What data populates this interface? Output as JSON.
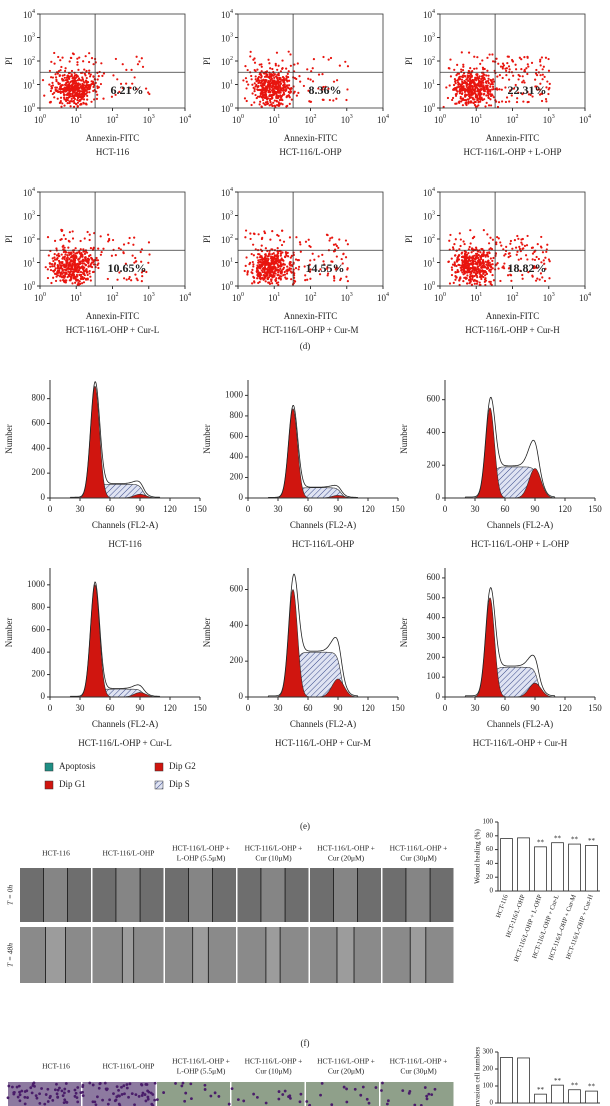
{
  "flow": {
    "axis": {
      "x_label": "Annexin-FITC",
      "y_label": "PI",
      "tick_base": "10",
      "tick_exps": [
        "0",
        "1",
        "2",
        "3",
        "4"
      ]
    },
    "panels": [
      {
        "caption": "HCT-116",
        "percent": "6.21%"
      },
      {
        "caption": "HCT-116/L-OHP",
        "percent": "8.36%"
      },
      {
        "caption": "HCT-116/L-OHP + L-OHP",
        "percent": "22.31%"
      },
      {
        "caption": "HCT-116/L-OHP + Cur-L",
        "percent": "10.65%"
      },
      {
        "caption": "HCT-116/L-OHP + Cur-M",
        "percent": "14.55%"
      },
      {
        "caption": "HCT-116/L-OHP + Cur-H",
        "percent": "18.82%"
      }
    ],
    "label": "(d)"
  },
  "cycle": {
    "x_label": "Channels (FL2-A)",
    "y_label": "Number",
    "xlim": [
      0,
      150
    ],
    "xticks": [
      0,
      30,
      60,
      90,
      120,
      150
    ],
    "panels": [
      {
        "caption": "HCT-116",
        "ylim": [
          0,
          950
        ],
        "yticks": [
          0,
          200,
          400,
          600,
          800
        ],
        "g1_peak": 900,
        "s_level": 110,
        "g2_peak": 30
      },
      {
        "caption": "HCT-116/L-OHP",
        "ylim": [
          0,
          1150
        ],
        "yticks": [
          0,
          200,
          400,
          600,
          800,
          1000
        ],
        "g1_peak": 870,
        "s_level": 100,
        "g2_peak": 25
      },
      {
        "caption": "HCT-116/L-OHP + L-OHP",
        "ylim": [
          0,
          720
        ],
        "yticks": [
          0,
          200,
          400,
          600
        ],
        "g1_peak": 550,
        "s_level": 190,
        "g2_peak": 180
      },
      {
        "caption": "HCT-116/L-OHP + Cur-L",
        "ylim": [
          0,
          1150
        ],
        "yticks": [
          0,
          200,
          400,
          600,
          800,
          1000
        ],
        "g1_peak": 1000,
        "s_level": 70,
        "g2_peak": 40
      },
      {
        "caption": "HCT-116/L-OHP + Cur-M",
        "ylim": [
          0,
          720
        ],
        "yticks": [
          0,
          200,
          400,
          600
        ],
        "g1_peak": 600,
        "s_level": 250,
        "g2_peak": 100
      },
      {
        "caption": "HCT-116/L-OHP + Cur-H",
        "ylim": [
          0,
          650
        ],
        "yticks": [
          0,
          100,
          200,
          300,
          400,
          500,
          600
        ],
        "g1_peak": 500,
        "s_level": 150,
        "g2_peak": 70
      }
    ],
    "legend": [
      {
        "name": "Apoptosis",
        "color": "#1f8f85"
      },
      {
        "name": "Dip G2",
        "color": "#d0150f"
      },
      {
        "name": "Dip G1",
        "color": "#d0150f"
      },
      {
        "name": "Dip S",
        "color": "hatch"
      }
    ],
    "label": "(e)"
  },
  "wound": {
    "columns": [
      [
        "HCT-116"
      ],
      [
        "HCT-116/L-OHP"
      ],
      [
        "HCT-116/L-OHP +",
        "L-OHP (5.5μM)"
      ],
      [
        "HCT-116/L-OHP +",
        "Cur (10μM)"
      ],
      [
        "HCT-116/L-OHP +",
        "Cur (20μM)"
      ],
      [
        "HCT-116/L-OHP +",
        "Cur (30μM)"
      ]
    ],
    "rows": [
      "T = 0h",
      "T = 48h"
    ],
    "chart": {
      "type": "bar",
      "y_label": "Wound healing (%)",
      "categories": [
        "HCT-116",
        "HCT-116/L-OHP",
        "HCT-116/L-OHP + L-OHP",
        "HCT-116/L-OHP + Cur-L",
        "HCT-116/L-OHP + Cur-M",
        "HCT-116/L-OHP + Cur-H"
      ],
      "values": [
        76,
        77,
        64,
        70,
        68,
        66
      ],
      "annotations": [
        null,
        null,
        "**",
        "**",
        "**",
        "**"
      ],
      "ylim": [
        0,
        100
      ],
      "yticks": [
        0,
        20,
        40,
        60,
        80,
        100
      ],
      "color": "#ffffff"
    },
    "label": "(f)"
  },
  "invasion": {
    "columns": [
      [
        "HCT-116"
      ],
      [
        "HCT-116/L-OHP"
      ],
      [
        "HCT-116/L-OHP +",
        "L-OHP (5.5μM)"
      ],
      [
        "HCT-116/L-OHP +",
        "Cur (10μM)"
      ],
      [
        "HCT-116/L-OHP +",
        "Cur (20μM)"
      ],
      [
        "HCT-116/L-OHP +",
        "Cur (30μM)"
      ]
    ],
    "chart": {
      "type": "bar",
      "y_label": "Invasion cell numbers",
      "values": [
        268,
        265,
        52,
        105,
        78,
        70
      ],
      "annotations": [
        null,
        null,
        "**",
        "**",
        "**",
        "**"
      ],
      "ylim": [
        0,
        300
      ],
      "yticks": [
        0,
        100,
        200,
        300
      ],
      "color": "#ffffff"
    }
  }
}
